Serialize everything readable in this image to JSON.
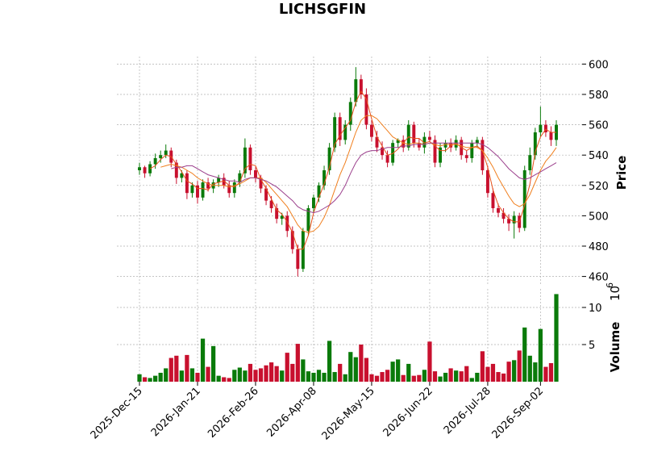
{
  "chart_data": {
    "type": "candlestick",
    "title": "LICHSGFIN",
    "categories": [
      "2025-Dec-15",
      null,
      null,
      null,
      null,
      null,
      null,
      null,
      null,
      null,
      null,
      "2026-Jan-21",
      null,
      null,
      null,
      null,
      null,
      null,
      null,
      null,
      null,
      null,
      "2026-Feb-26",
      null,
      null,
      null,
      null,
      null,
      null,
      null,
      null,
      null,
      null,
      "2026-Apr-08",
      null,
      null,
      null,
      null,
      null,
      null,
      null,
      null,
      null,
      null,
      "2026-May-15",
      null,
      null,
      null,
      null,
      null,
      null,
      null,
      null,
      null,
      null,
      "2026-Jun-22",
      null,
      null,
      null,
      null,
      null,
      null,
      null,
      null,
      null,
      null,
      "2026-Jul-28",
      null,
      null,
      null,
      null,
      null,
      null,
      null,
      null,
      null,
      "2026-Sep-02",
      null,
      null,
      null
    ],
    "open": [
      530,
      532,
      528,
      534,
      538,
      540,
      543,
      535,
      525,
      528,
      515,
      520,
      512,
      522,
      518,
      522,
      525,
      520,
      515,
      522,
      528,
      545,
      530,
      525,
      518,
      510,
      505,
      498,
      500,
      490,
      478,
      465,
      490,
      505,
      512,
      520,
      530,
      545,
      565,
      550,
      560,
      575,
      590,
      580,
      560,
      552,
      545,
      540,
      535,
      548,
      550,
      545,
      560,
      548,
      545,
      552,
      550,
      535,
      545,
      548,
      545,
      550,
      540,
      538,
      548,
      550,
      530,
      515,
      505,
      502,
      498,
      495,
      500,
      492,
      530,
      540,
      555,
      560,
      555,
      550
    ],
    "high": [
      535,
      533,
      536,
      541,
      543,
      547,
      545,
      537,
      530,
      530,
      522,
      523,
      524,
      525,
      524,
      527,
      528,
      523,
      524,
      530,
      551,
      547,
      532,
      527,
      520,
      513,
      508,
      502,
      503,
      493,
      481,
      492,
      507,
      514,
      522,
      533,
      548,
      568,
      568,
      563,
      578,
      598,
      593,
      584,
      563,
      556,
      549,
      543,
      550,
      551,
      553,
      563,
      562,
      551,
      555,
      556,
      553,
      548,
      550,
      551,
      553,
      552,
      543,
      550,
      552,
      552,
      533,
      518,
      508,
      505,
      501,
      503,
      502,
      533,
      545,
      558,
      572,
      563,
      559,
      563
    ],
    "low": [
      527,
      525,
      526,
      531,
      535,
      538,
      532,
      521,
      522,
      511,
      512,
      508,
      510,
      516,
      515,
      519,
      518,
      512,
      512,
      519,
      525,
      527,
      522,
      515,
      507,
      502,
      495,
      494,
      486,
      475,
      460,
      463,
      487,
      502,
      509,
      517,
      527,
      542,
      546,
      547,
      556,
      572,
      577,
      557,
      549,
      542,
      537,
      532,
      533,
      545,
      542,
      543,
      545,
      543,
      541,
      549,
      532,
      532,
      542,
      542,
      543,
      537,
      535,
      535,
      545,
      527,
      512,
      502,
      499,
      495,
      490,
      485,
      489,
      490,
      527,
      537,
      552,
      552,
      546,
      546
    ],
    "close": [
      532,
      528,
      534,
      538,
      540,
      543,
      535,
      525,
      528,
      515,
      520,
      512,
      522,
      518,
      522,
      525,
      520,
      515,
      522,
      528,
      545,
      530,
      525,
      518,
      510,
      505,
      498,
      500,
      490,
      478,
      465,
      490,
      505,
      512,
      520,
      530,
      545,
      565,
      550,
      560,
      575,
      590,
      580,
      560,
      552,
      545,
      540,
      535,
      548,
      550,
      545,
      560,
      548,
      545,
      552,
      550,
      535,
      545,
      548,
      545,
      550,
      540,
      538,
      548,
      550,
      530,
      515,
      505,
      502,
      498,
      495,
      500,
      492,
      530,
      540,
      555,
      560,
      555,
      550,
      560
    ],
    "volume": [
      1.0,
      0.6,
      0.5,
      0.8,
      1.2,
      1.8,
      3.2,
      3.5,
      1.5,
      3.6,
      1.8,
      1.2,
      5.8,
      2.0,
      4.8,
      0.8,
      0.6,
      0.5,
      1.6,
      1.9,
      1.5,
      2.4,
      1.6,
      1.8,
      2.2,
      2.6,
      2.1,
      1.5,
      3.9,
      2.4,
      5.1,
      3.0,
      1.4,
      1.2,
      1.6,
      1.2,
      5.5,
      1.3,
      2.4,
      1.0,
      4.0,
      3.3,
      5.0,
      3.2,
      1.0,
      0.8,
      1.3,
      1.6,
      2.7,
      3.0,
      0.9,
      2.4,
      0.8,
      0.9,
      1.6,
      5.4,
      1.4,
      0.7,
      1.2,
      1.8,
      1.5,
      1.4,
      2.1,
      0.5,
      1.2,
      4.1,
      2.0,
      2.4,
      1.3,
      1.1,
      2.7,
      2.9,
      4.2,
      7.3,
      3.5,
      2.6,
      7.1,
      2.0,
      2.5,
      11.8
    ],
    "up_color": "#0a7a0a",
    "down_color": "#c8102e",
    "moving_averages": [
      {
        "color": "#e8501a",
        "values": [
          null,
          null,
          531,
          533,
          537,
          540,
          539,
          534,
          529,
          523,
          521,
          518,
          518,
          517,
          521,
          522,
          523,
          520,
          519,
          522,
          531,
          534,
          533,
          524,
          518,
          511,
          504,
          501,
          496,
          489,
          478,
          478,
          487,
          502,
          512,
          521,
          532,
          547,
          553,
          558,
          563,
          575,
          582,
          577,
          564,
          552,
          546,
          540,
          541,
          544,
          548,
          552,
          551,
          551,
          548,
          549,
          546,
          543,
          543,
          546,
          548,
          545,
          543,
          545,
          546,
          543,
          532,
          517,
          507,
          502,
          498,
          496,
          496,
          507,
          521,
          542,
          552,
          557,
          555,
          555
        ]
      },
      {
        "color": "#f07f1e",
        "values": [
          null,
          null,
          null,
          null,
          532,
          533,
          534,
          533,
          532,
          530,
          528,
          525,
          523,
          521,
          520,
          520,
          520,
          519,
          520,
          521,
          523,
          525,
          525,
          525,
          522,
          518,
          514,
          510,
          506,
          500,
          494,
          490,
          489,
          490,
          493,
          499,
          507,
          517,
          527,
          535,
          545,
          555,
          563,
          566,
          566,
          564,
          560,
          556,
          552,
          550,
          548,
          547,
          548,
          548,
          547,
          548,
          547,
          546,
          547,
          547,
          547,
          546,
          545,
          545,
          545,
          543,
          538,
          532,
          525,
          519,
          513,
          508,
          506,
          508,
          514,
          522,
          530,
          536,
          540,
          545
        ]
      },
      {
        "color": "#9b3f8c",
        "values": [
          null,
          null,
          null,
          null,
          null,
          null,
          531,
          532,
          532,
          533,
          533,
          531,
          529,
          527,
          526,
          525,
          524,
          523,
          523,
          522,
          524,
          525,
          525,
          524,
          523,
          521,
          519,
          516,
          513,
          510,
          506,
          504,
          503,
          502,
          503,
          505,
          507,
          510,
          514,
          520,
          528,
          535,
          540,
          542,
          543,
          543,
          544,
          545,
          545,
          545,
          546,
          546,
          547,
          547,
          547,
          548,
          548,
          548,
          548,
          548,
          548,
          548,
          548,
          548,
          548,
          547,
          545,
          542,
          539,
          535,
          531,
          528,
          525,
          524,
          525,
          527,
          529,
          531,
          533,
          535
        ]
      }
    ],
    "ylim": [
      455,
      605
    ],
    "yticks": [
      460,
      480,
      500,
      520,
      540,
      560,
      580,
      600
    ],
    "y_label": "Price",
    "volume_ylim": [
      0,
      12.5
    ],
    "volume_yticks": [
      5,
      10
    ],
    "volume_label": "Volume",
    "volume_multiplier": "10",
    "volume_exponent": "6",
    "grid": true
  }
}
